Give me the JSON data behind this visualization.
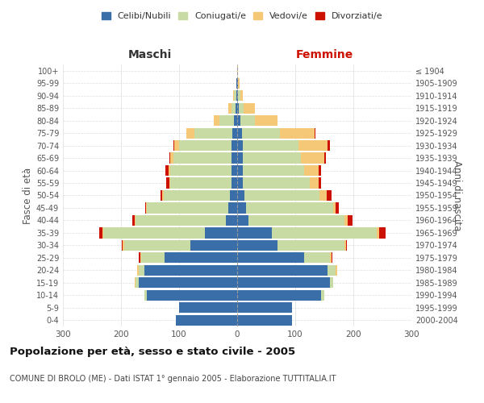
{
  "age_groups": [
    "0-4",
    "5-9",
    "10-14",
    "15-19",
    "20-24",
    "25-29",
    "30-34",
    "35-39",
    "40-44",
    "45-49",
    "50-54",
    "55-59",
    "60-64",
    "65-69",
    "70-74",
    "75-79",
    "80-84",
    "85-89",
    "90-94",
    "95-99",
    "100+"
  ],
  "birth_years": [
    "2000-2004",
    "1995-1999",
    "1990-1994",
    "1985-1989",
    "1980-1984",
    "1975-1979",
    "1970-1974",
    "1965-1969",
    "1960-1964",
    "1955-1959",
    "1950-1954",
    "1945-1949",
    "1940-1944",
    "1935-1939",
    "1930-1934",
    "1925-1929",
    "1920-1924",
    "1915-1919",
    "1910-1914",
    "1905-1909",
    "≤ 1904"
  ],
  "maschi": {
    "celibi": [
      105,
      100,
      155,
      170,
      160,
      125,
      80,
      55,
      20,
      15,
      12,
      10,
      10,
      10,
      10,
      8,
      5,
      3,
      2,
      1,
      0
    ],
    "coniugati": [
      0,
      0,
      5,
      5,
      10,
      40,
      115,
      175,
      155,
      140,
      115,
      105,
      105,
      100,
      90,
      65,
      25,
      7,
      3,
      1,
      0
    ],
    "vedovi": [
      0,
      0,
      0,
      2,
      2,
      2,
      2,
      2,
      2,
      2,
      2,
      2,
      3,
      5,
      8,
      15,
      10,
      5,
      2,
      0,
      0
    ],
    "divorziati": [
      0,
      0,
      0,
      0,
      0,
      2,
      2,
      5,
      4,
      2,
      3,
      5,
      5,
      2,
      2,
      0,
      0,
      0,
      0,
      0,
      0
    ]
  },
  "femmine": {
    "nubili": [
      95,
      95,
      145,
      160,
      155,
      115,
      70,
      60,
      20,
      15,
      12,
      10,
      10,
      10,
      10,
      8,
      5,
      3,
      1,
      1,
      0
    ],
    "coniugate": [
      0,
      0,
      5,
      5,
      15,
      45,
      115,
      180,
      165,
      150,
      130,
      115,
      105,
      100,
      95,
      65,
      25,
      8,
      4,
      1,
      0
    ],
    "vedove": [
      0,
      0,
      0,
      0,
      2,
      2,
      2,
      5,
      5,
      5,
      12,
      15,
      25,
      40,
      50,
      60,
      40,
      20,
      5,
      2,
      1
    ],
    "divorziate": [
      0,
      0,
      0,
      0,
      0,
      2,
      2,
      10,
      8,
      5,
      8,
      5,
      5,
      3,
      5,
      2,
      0,
      0,
      0,
      0,
      0
    ]
  },
  "colors": {
    "celibi": "#3a6ea8",
    "coniugati": "#c8dba4",
    "vedovi": "#f5c878",
    "divorziati": "#cc1100"
  },
  "xlim": 300,
  "title": "Popolazione per età, sesso e stato civile - 2005",
  "subtitle": "COMUNE DI BROLO (ME) - Dati ISTAT 1° gennaio 2005 - Elaborazione TUTTITALIA.IT",
  "ylabel_left": "Fasce di età",
  "ylabel_right": "Anni di nascita",
  "xlabel_maschi": "Maschi",
  "xlabel_femmine": "Femmine",
  "bg_color": "#ffffff",
  "grid_color": "#cccccc"
}
